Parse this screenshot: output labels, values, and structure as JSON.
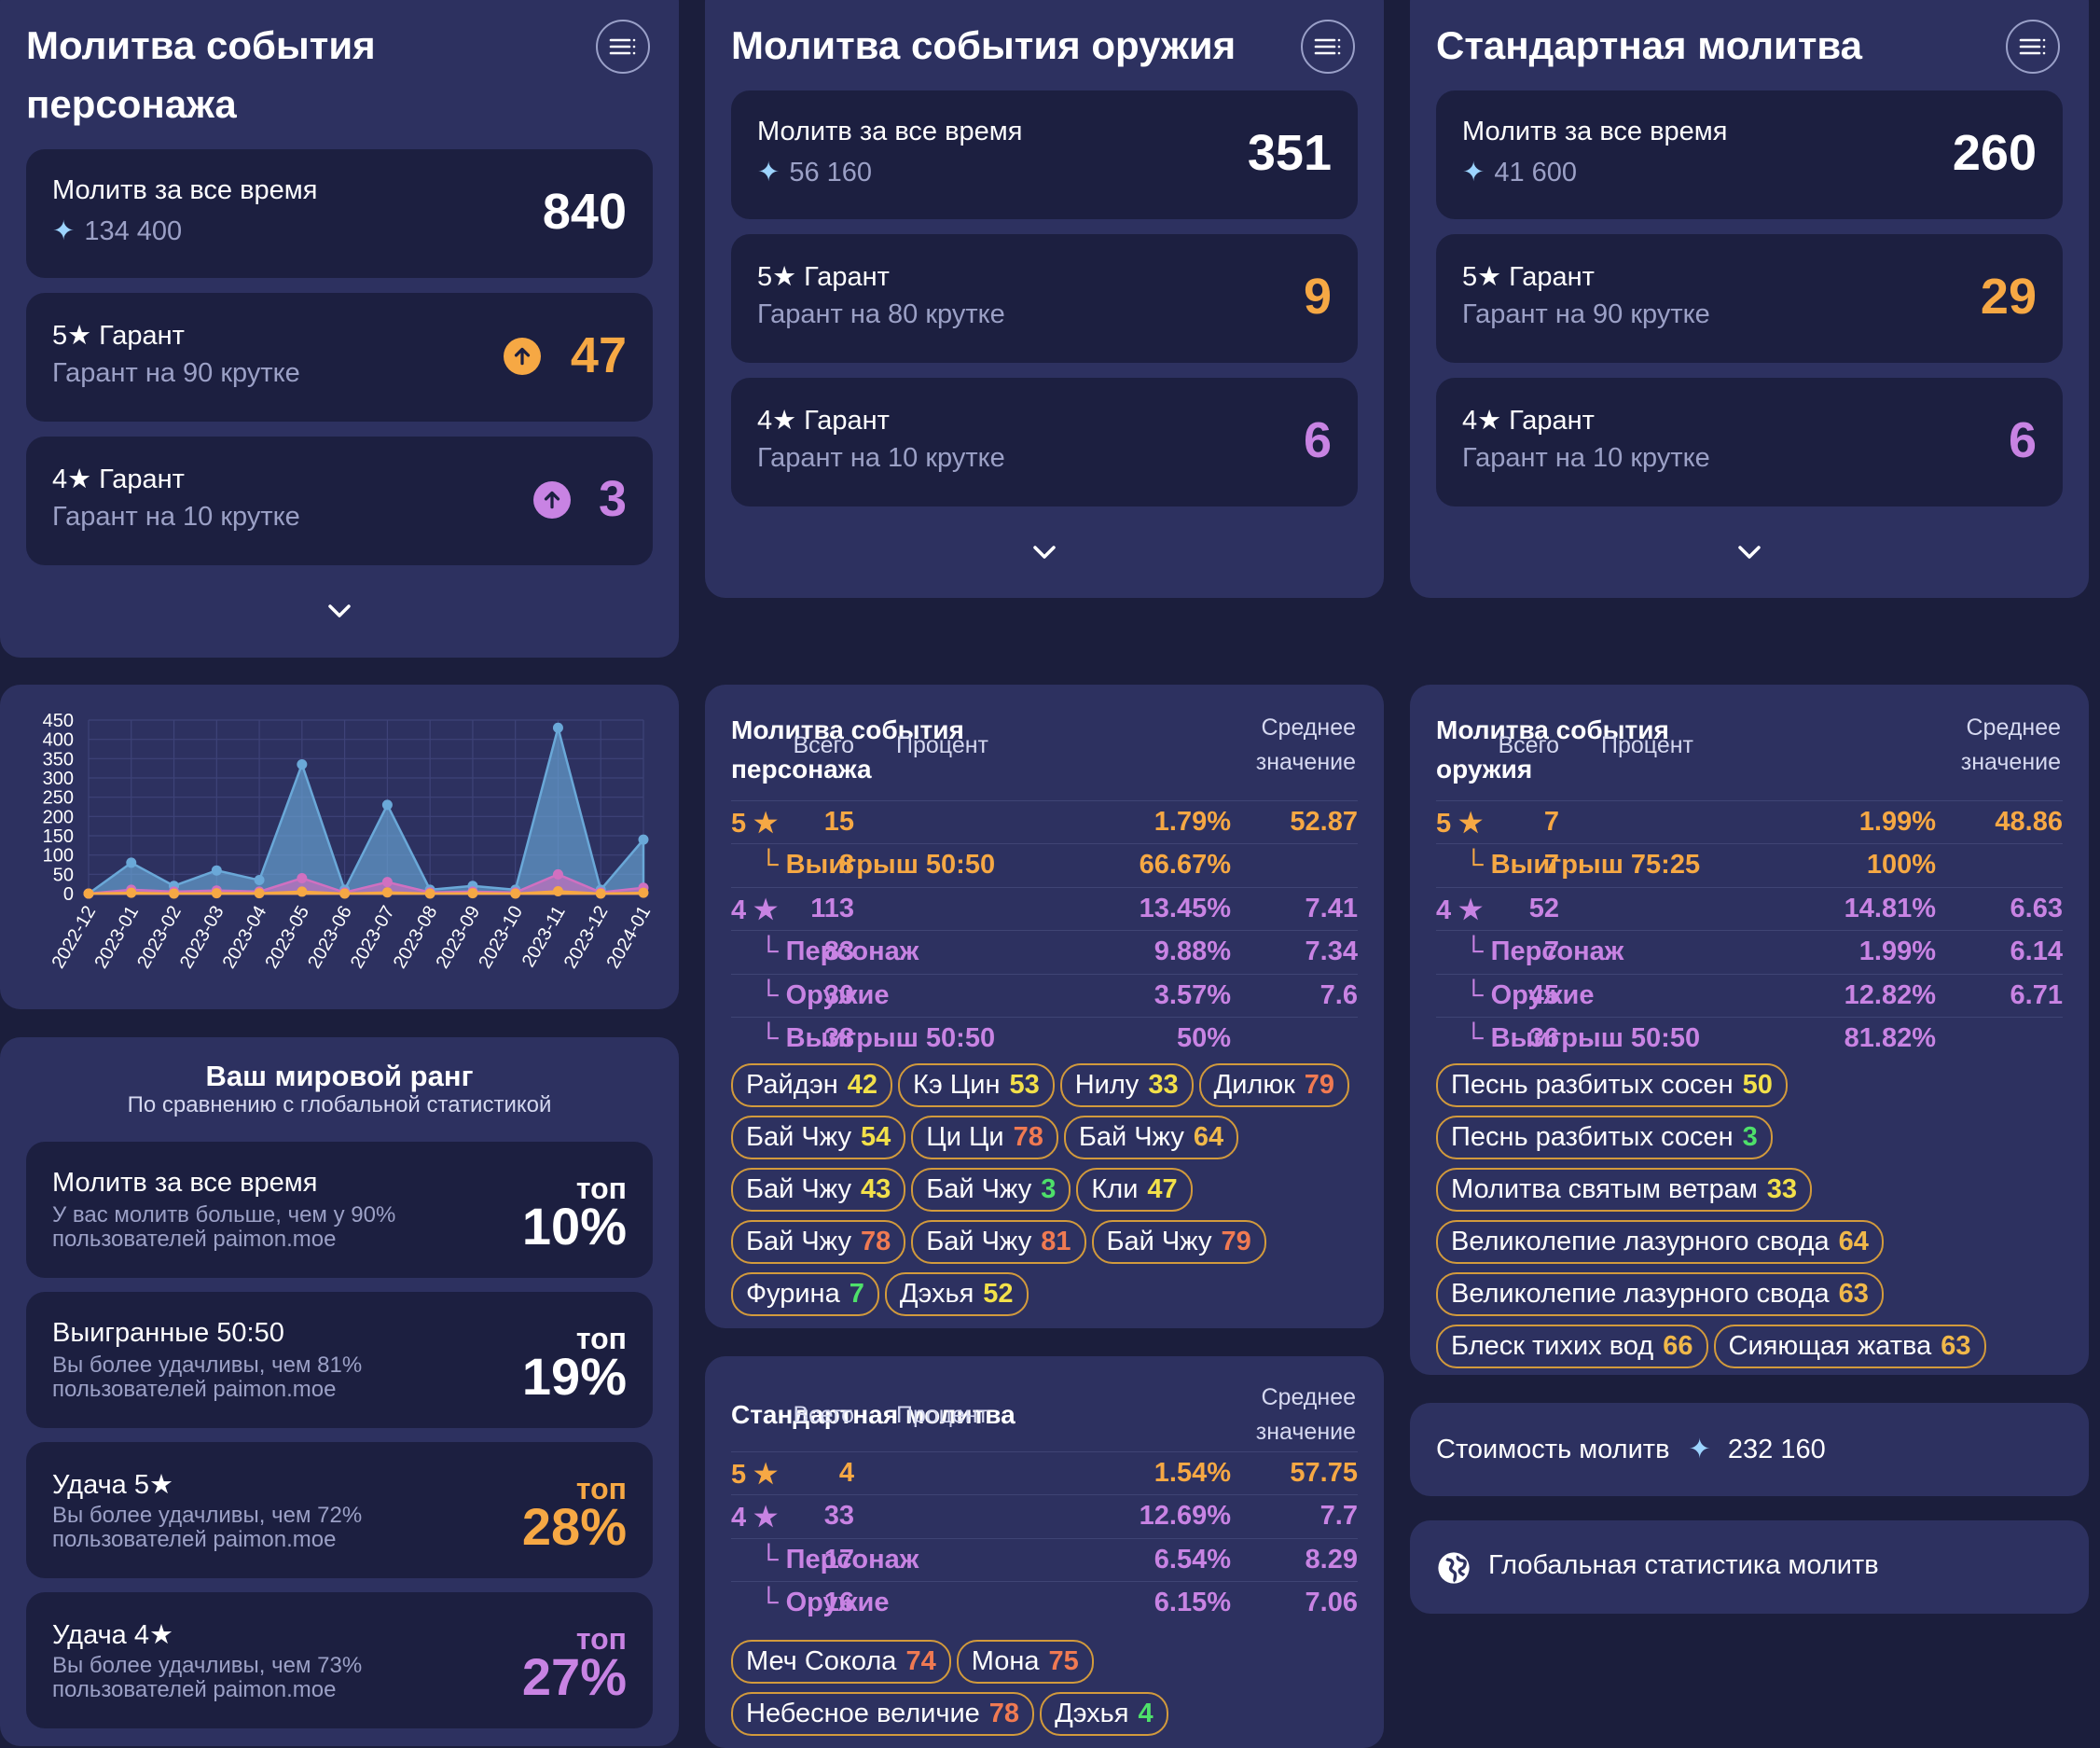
{
  "colors": {
    "bg": "#1b1e3c",
    "card": "#2d3160",
    "inner": "#1c1f40",
    "gold": "#f6a844",
    "purple": "#c883e3",
    "gray": "#9ba0c6"
  },
  "banners": [
    {
      "title_line1": "Молитва события",
      "title_line2": "персонажа",
      "total_label": "Молитв за все время",
      "total_primo": "134 400",
      "total_value": "840",
      "five_label": "5★ Гарант",
      "five_sub": "Гарант на 90 крутке",
      "five_value": "47",
      "four_label": "4★ Гарант",
      "four_sub": "Гарант на 10 крутке",
      "four_value": "3"
    },
    {
      "title_line1": "Молитва события оружия",
      "total_label": "Молитв за все время",
      "total_primo": "56 160",
      "total_value": "351",
      "five_label": "5★ Гарант",
      "five_sub": "Гарант на 80 крутке",
      "five_value": "9",
      "four_label": "4★ Гарант",
      "four_sub": "Гарант на 10 крутке",
      "four_value": "6"
    },
    {
      "title_line1": "Стандартная молитва",
      "total_label": "Молитв за все время",
      "total_primo": "41 600",
      "total_value": "260",
      "five_label": "5★ Гарант",
      "five_sub": "Гарант на 90 крутке",
      "five_value": "29",
      "four_label": "4★ Гарант",
      "four_sub": "Гарант на 10 крутке",
      "four_value": "6"
    }
  ],
  "chart_data": {
    "type": "area",
    "categories": [
      "2022-12",
      "2023-01",
      "2023-02",
      "2023-03",
      "2023-04",
      "2023-05",
      "2023-06",
      "2023-07",
      "2023-08",
      "2023-09",
      "2023-10",
      "2023-11",
      "2023-12",
      "2024-01"
    ],
    "yticks": [
      "0",
      "50",
      "100",
      "150",
      "200",
      "250",
      "300",
      "350",
      "400",
      "450"
    ],
    "ylim": [
      0,
      450
    ],
    "grid": true,
    "series": [
      {
        "values": [
          0,
          80,
          20,
          60,
          35,
          335,
          10,
          230,
          10,
          20,
          10,
          430,
          10,
          140
        ],
        "color": "#6aa8d8"
      },
      {
        "values": [
          0,
          10,
          5,
          8,
          5,
          40,
          3,
          30,
          3,
          5,
          3,
          50,
          3,
          15
        ],
        "color": "#d070c0"
      },
      {
        "values": [
          0,
          2,
          0,
          1,
          1,
          5,
          0,
          3,
          0,
          1,
          0,
          6,
          0,
          2
        ],
        "color": "#f6a844"
      }
    ]
  },
  "rank": {
    "title": "Ваш мировой ранг",
    "subtitle": "По сравнению с глобальной статистикой",
    "items": [
      {
        "label": "Молитв за все время",
        "sub": "У вас молитв больше, чем у 90% пользователей paimon.moe",
        "top": "топ",
        "pct": "10%",
        "color": "#ffffff"
      },
      {
        "label": "Выигранные 50:50",
        "sub": "Вы более удачливы, чем 81% пользователей paimon.moe",
        "top": "топ",
        "pct": "19%",
        "color": "#ffffff"
      },
      {
        "label": "Удача 5★",
        "sub": "Вы более удачливы, чем 72% пользователей paimon.moe",
        "top": "топ",
        "pct": "28%",
        "color": "#f6a844"
      },
      {
        "label": "Удача 4★",
        "sub": "Вы более удачливы, чем 73% пользователей paimon.moe",
        "top": "топ",
        "pct": "27%",
        "color": "#c883e3"
      }
    ]
  },
  "table_headers": {
    "total": "Всего",
    "percent": "Процент",
    "avg1": "Среднее",
    "avg2": "значение"
  },
  "table_char": {
    "title_line1": "Молитва события",
    "title_line2": "персонажа",
    "rows": [
      {
        "label": "5 ★",
        "total": "15",
        "pct": "1.79%",
        "avg": "52.87",
        "kind": "gold",
        "sub": false
      },
      {
        "label": "└ Выигрыш 50:50",
        "total": "8",
        "pct": "66.67%",
        "avg": "",
        "kind": "gold",
        "sub": true
      },
      {
        "label": "4 ★",
        "total": "113",
        "pct": "13.45%",
        "avg": "7.41",
        "kind": "purple",
        "sub": false
      },
      {
        "label": "└ Персонаж",
        "total": "83",
        "pct": "9.88%",
        "avg": "7.34",
        "kind": "purple",
        "sub": true
      },
      {
        "label": "└ Оружие",
        "total": "30",
        "pct": "3.57%",
        "avg": "7.6",
        "kind": "purple",
        "sub": true
      },
      {
        "label": "└ Выигрыш 50:50",
        "total": "38",
        "pct": "50%",
        "avg": "",
        "kind": "purple",
        "sub": true
      }
    ],
    "pills": [
      {
        "name": "Райдэн",
        "n": "42",
        "c": "#f2e04a"
      },
      {
        "name": "Кэ Цин",
        "n": "53",
        "c": "#f2e04a"
      },
      {
        "name": "Нилу",
        "n": "33",
        "c": "#f2e04a"
      },
      {
        "name": "Дилюк",
        "n": "79",
        "c": "#f07a52"
      },
      {
        "name": "Бай Чжу",
        "n": "54",
        "c": "#f2e04a"
      },
      {
        "name": "Ци Ци",
        "n": "78",
        "c": "#f07a52"
      },
      {
        "name": "Бай Чжу",
        "n": "64",
        "c": "#f0b84a"
      },
      {
        "name": "Бай Чжу",
        "n": "43",
        "c": "#f2e04a"
      },
      {
        "name": "Бай Чжу",
        "n": "3",
        "c": "#4ee06a"
      },
      {
        "name": "Кли",
        "n": "47",
        "c": "#f2e04a"
      },
      {
        "name": "Бай Чжу",
        "n": "78",
        "c": "#f07a52"
      },
      {
        "name": "Бай Чжу",
        "n": "81",
        "c": "#f07a52"
      },
      {
        "name": "Бай Чжу",
        "n": "79",
        "c": "#f07a52"
      },
      {
        "name": "Фурина",
        "n": "7",
        "c": "#4ee06a"
      },
      {
        "name": "Дэхья",
        "n": "52",
        "c": "#f2e04a"
      }
    ]
  },
  "table_weapon": {
    "title_line1": "Молитва события",
    "title_line2": "оружия",
    "rows": [
      {
        "label": "5 ★",
        "total": "7",
        "pct": "1.99%",
        "avg": "48.86",
        "kind": "gold",
        "sub": false
      },
      {
        "label": "└ Выигрыш 75:25",
        "total": "7",
        "pct": "100%",
        "avg": "",
        "kind": "gold",
        "sub": true
      },
      {
        "label": "4 ★",
        "total": "52",
        "pct": "14.81%",
        "avg": "6.63",
        "kind": "purple",
        "sub": false
      },
      {
        "label": "└ Персонаж",
        "total": "7",
        "pct": "1.99%",
        "avg": "6.14",
        "kind": "purple",
        "sub": true
      },
      {
        "label": "└ Оружие",
        "total": "45",
        "pct": "12.82%",
        "avg": "6.71",
        "kind": "purple",
        "sub": true
      },
      {
        "label": "└ Выигрыш 50:50",
        "total": "36",
        "pct": "81.82%",
        "avg": "",
        "kind": "purple",
        "sub": true
      }
    ],
    "pills": [
      {
        "name": "Песнь разбитых сосен",
        "n": "50",
        "c": "#f2e04a"
      },
      {
        "name": "Песнь разбитых сосен",
        "n": "3",
        "c": "#4ee06a"
      },
      {
        "name": "Молитва святым ветрам",
        "n": "33",
        "c": "#f2e04a"
      },
      {
        "name": "Великолепие лазурного свода",
        "n": "64",
        "c": "#f0b84a"
      },
      {
        "name": "Великолепие лазурного свода",
        "n": "63",
        "c": "#f0b84a"
      },
      {
        "name": "Блеск тихих вод",
        "n": "66",
        "c": "#f0b84a"
      },
      {
        "name": "Сияющая жатва",
        "n": "63",
        "c": "#f0b84a"
      }
    ]
  },
  "table_std": {
    "title": "Стандартная молитва",
    "rows": [
      {
        "label": "5 ★",
        "total": "4",
        "pct": "1.54%",
        "avg": "57.75",
        "kind": "gold",
        "sub": false
      },
      {
        "label": "4 ★",
        "total": "33",
        "pct": "12.69%",
        "avg": "7.7",
        "kind": "purple",
        "sub": false
      },
      {
        "label": "└ Персонаж",
        "total": "17",
        "pct": "6.54%",
        "avg": "8.29",
        "kind": "purple",
        "sub": true
      },
      {
        "label": "└ Оружие",
        "total": "16",
        "pct": "6.15%",
        "avg": "7.06",
        "kind": "purple",
        "sub": true
      }
    ],
    "pills": [
      {
        "name": "Меч Сокола",
        "n": "74",
        "c": "#f07a52"
      },
      {
        "name": "Мона",
        "n": "75",
        "c": "#f07a52"
      },
      {
        "name": "Небесное величие",
        "n": "78",
        "c": "#f07a52"
      },
      {
        "name": "Дэхья",
        "n": "4",
        "c": "#4ee06a"
      }
    ]
  },
  "cost": {
    "label": "Стоимость молитв",
    "value": "232 160"
  },
  "global": {
    "label": "Глобальная статистика молитв"
  }
}
